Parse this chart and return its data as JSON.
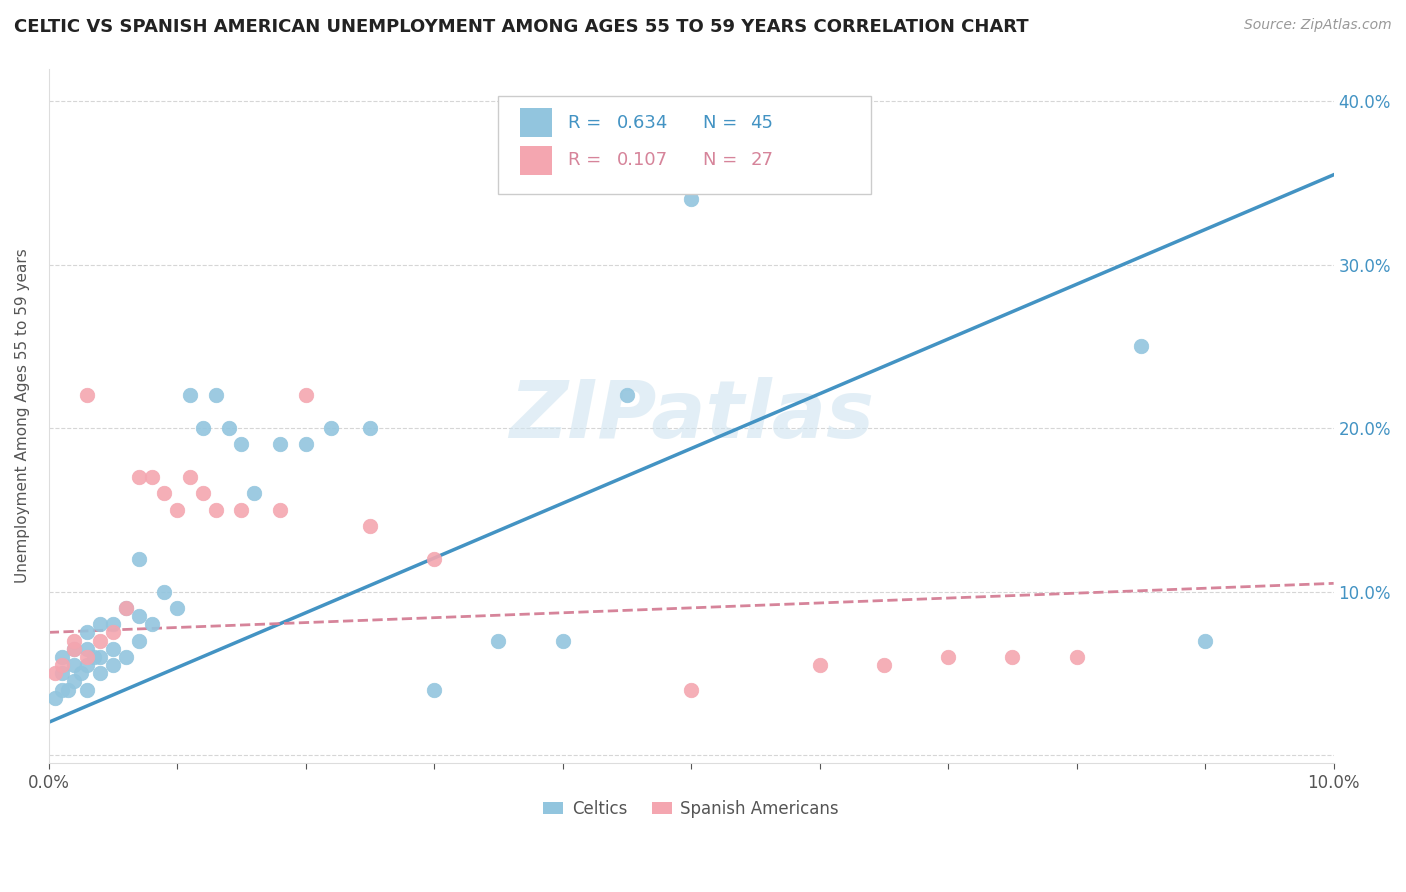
{
  "title": "CELTIC VS SPANISH AMERICAN UNEMPLOYMENT AMONG AGES 55 TO 59 YEARS CORRELATION CHART",
  "source": "Source: ZipAtlas.com",
  "ylabel": "Unemployment Among Ages 55 to 59 years",
  "xlim": [
    0.0,
    0.1
  ],
  "ylim": [
    -0.005,
    0.42
  ],
  "x_ticks": [
    0.0,
    0.01,
    0.02,
    0.03,
    0.04,
    0.05,
    0.06,
    0.07,
    0.08,
    0.09,
    0.1
  ],
  "x_tick_labels": [
    "0.0%",
    "",
    "",
    "",
    "",
    "",
    "",
    "",
    "",
    "",
    "10.0%"
  ],
  "y_ticks": [
    0.0,
    0.1,
    0.2,
    0.3,
    0.4
  ],
  "y_tick_labels": [
    "",
    "10.0%",
    "20.0%",
    "30.0%",
    "40.0%"
  ],
  "celtic_R": 0.634,
  "celtic_N": 45,
  "spanish_R": 0.107,
  "spanish_N": 27,
  "celtics_color": "#92c5de",
  "spanish_color": "#f4a6b0",
  "trend_celtic_color": "#4393c3",
  "trend_spanish_color": "#d6849a",
  "legend_text_celtic_color": "#4393c3",
  "legend_text_spanish_color": "#d6849a",
  "watermark": "ZIPatlas",
  "celtics_x": [
    0.0005,
    0.001,
    0.001,
    0.001,
    0.0015,
    0.002,
    0.002,
    0.002,
    0.0025,
    0.003,
    0.003,
    0.003,
    0.003,
    0.0035,
    0.004,
    0.004,
    0.004,
    0.005,
    0.005,
    0.005,
    0.006,
    0.006,
    0.007,
    0.007,
    0.007,
    0.008,
    0.009,
    0.01,
    0.011,
    0.012,
    0.013,
    0.014,
    0.015,
    0.016,
    0.018,
    0.02,
    0.022,
    0.025,
    0.03,
    0.035,
    0.04,
    0.045,
    0.05,
    0.085,
    0.09
  ],
  "celtics_y": [
    0.035,
    0.04,
    0.05,
    0.06,
    0.04,
    0.045,
    0.055,
    0.065,
    0.05,
    0.04,
    0.055,
    0.065,
    0.075,
    0.06,
    0.05,
    0.06,
    0.08,
    0.055,
    0.065,
    0.08,
    0.06,
    0.09,
    0.07,
    0.085,
    0.12,
    0.08,
    0.1,
    0.09,
    0.22,
    0.2,
    0.22,
    0.2,
    0.19,
    0.16,
    0.19,
    0.19,
    0.2,
    0.2,
    0.04,
    0.07,
    0.07,
    0.22,
    0.34,
    0.25,
    0.07
  ],
  "spanish_x": [
    0.0005,
    0.001,
    0.002,
    0.002,
    0.003,
    0.003,
    0.004,
    0.005,
    0.006,
    0.007,
    0.008,
    0.009,
    0.01,
    0.011,
    0.012,
    0.013,
    0.015,
    0.018,
    0.02,
    0.025,
    0.03,
    0.05,
    0.06,
    0.065,
    0.07,
    0.075,
    0.08
  ],
  "spanish_y": [
    0.05,
    0.055,
    0.065,
    0.07,
    0.06,
    0.22,
    0.07,
    0.075,
    0.09,
    0.17,
    0.17,
    0.16,
    0.15,
    0.17,
    0.16,
    0.15,
    0.15,
    0.15,
    0.22,
    0.14,
    0.12,
    0.04,
    0.055,
    0.055,
    0.06,
    0.06,
    0.06
  ],
  "trend_celtic_x0": 0.0,
  "trend_celtic_x1": 0.1,
  "trend_celtic_y0": 0.02,
  "trend_celtic_y1": 0.355,
  "trend_spanish_x0": 0.0,
  "trend_spanish_x1": 0.1,
  "trend_spanish_y0": 0.075,
  "trend_spanish_y1": 0.105
}
